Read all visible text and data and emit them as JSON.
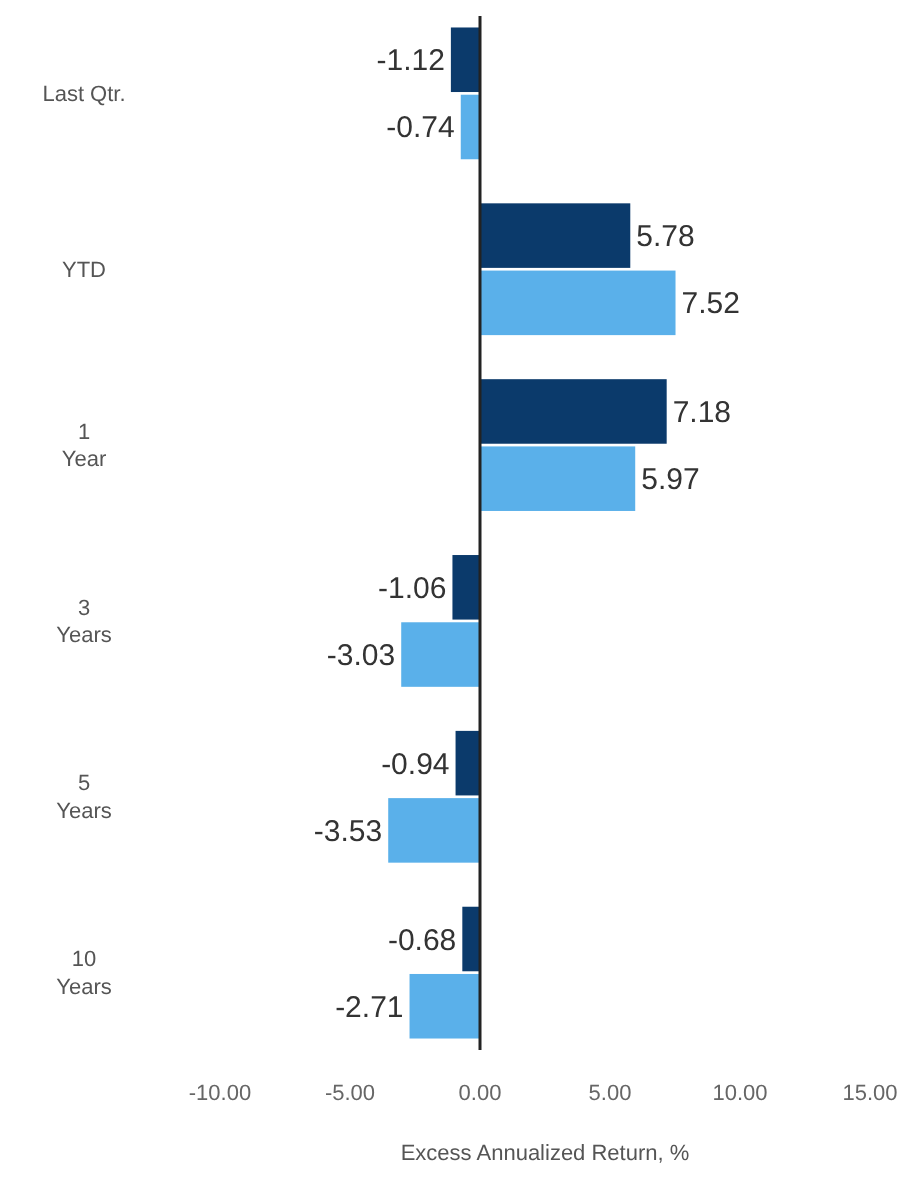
{
  "chart_data": {
    "type": "bar",
    "orientation": "horizontal",
    "xlabel": "Excess Annualized Return, %",
    "categories": [
      "Last Qtr.",
      "YTD",
      "1\nYear",
      "3\nYears",
      "5\nYears",
      "10\nYears"
    ],
    "series": [
      {
        "color": "#0b3a6b",
        "values": [
          -1.12,
          5.78,
          7.18,
          -1.06,
          -0.94,
          -0.68
        ]
      },
      {
        "color": "#5ab0ea",
        "values": [
          -0.74,
          7.52,
          5.97,
          -3.03,
          -3.53,
          -2.71
        ]
      }
    ],
    "xlim": [
      -10,
      15
    ],
    "xticks": [
      {
        "value": -10,
        "label": "-10.00"
      },
      {
        "value": -5,
        "label": "-5.00"
      },
      {
        "value": 0,
        "label": "0.00"
      },
      {
        "value": 5,
        "label": "5.00"
      },
      {
        "value": 10,
        "label": "10.00"
      },
      {
        "value": 15,
        "label": "15.00"
      }
    ],
    "data_labels": true
  }
}
